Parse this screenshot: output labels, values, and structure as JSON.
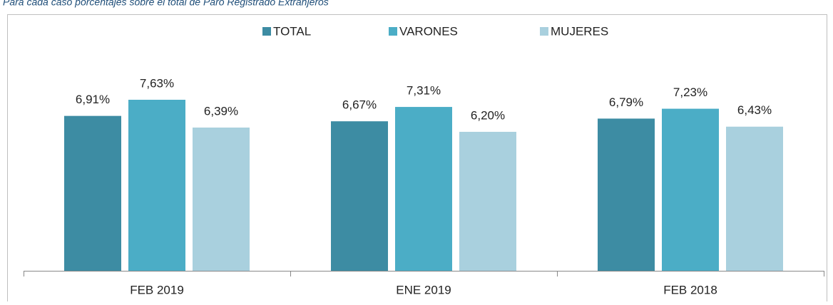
{
  "chart_data": {
    "type": "bar",
    "subtitle": "Para cada caso porcentajes sobre el total de Paro Registrado Extranjeros",
    "categories": [
      "FEB 2019",
      "ENE 2019",
      "FEB 2018"
    ],
    "series": [
      {
        "name": "TOTAL",
        "color": "#3d8ca3",
        "values": [
          6.91,
          6.67,
          6.79
        ],
        "value_labels": [
          "6,91%",
          "6,67%",
          "6,79%"
        ]
      },
      {
        "name": "VARONES",
        "color": "#4badc6",
        "values": [
          7.63,
          7.31,
          7.23
        ],
        "value_labels": [
          "7,63%",
          "7,31%",
          "7,23%"
        ]
      },
      {
        "name": "MUJERES",
        "color": "#a9d0de",
        "values": [
          6.39,
          6.2,
          6.43
        ],
        "value_labels": [
          "6,39%",
          "6,20%",
          "6,43%"
        ]
      }
    ],
    "legend": "top"
  }
}
